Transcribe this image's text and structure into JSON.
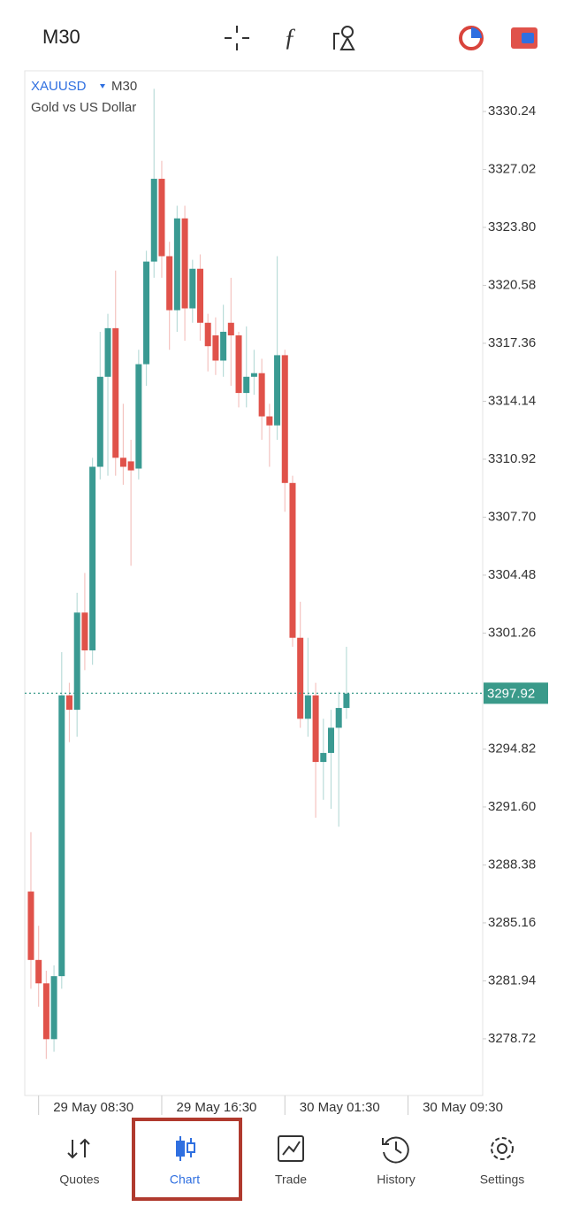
{
  "toolbar": {
    "timeframe": "M30"
  },
  "chart_data": {
    "type": "candlestick",
    "symbol": "XAUUSD",
    "timeframe": "M30",
    "subtitle": "Gold vs US Dollar",
    "up_color": "#3a9a92",
    "down_color": "#e0524a",
    "categories": [
      null,
      null,
      null,
      null,
      null,
      null,
      null,
      null,
      null,
      null,
      null,
      null,
      null,
      null,
      null,
      null,
      null,
      null,
      null,
      null,
      null,
      null,
      null,
      null,
      null,
      null,
      null,
      null,
      null,
      null,
      null,
      null,
      null,
      null,
      null,
      null,
      null,
      null,
      null,
      null,
      null,
      null
    ],
    "open": [
      3286.9,
      3283.1,
      3281.8,
      3278.7,
      3282.2,
      3297.8,
      3297.0,
      3302.4,
      3300.3,
      3310.5,
      3315.5,
      3318.2,
      3311.0,
      3310.8,
      3310.4,
      3316.2,
      3321.9,
      3326.5,
      3322.2,
      3319.2,
      3324.3,
      3319.3,
      3321.5,
      3318.5,
      3317.8,
      3316.4,
      3318.5,
      3317.8,
      3314.6,
      3315.5,
      3315.7,
      3313.3,
      3312.8,
      3316.7,
      3309.6,
      3301.0,
      3296.5,
      3297.8,
      3294.1,
      3294.6,
      3296.0,
      3297.1
    ],
    "high": [
      3290.2,
      3285.0,
      3282.5,
      3282.8,
      3300.2,
      3298.5,
      3303.5,
      3304.6,
      3311.0,
      3318.0,
      3319.0,
      3321.4,
      3314.0,
      3312.0,
      3317.0,
      3322.5,
      3331.5,
      3327.5,
      3323.0,
      3325.0,
      3325.0,
      3322.0,
      3322.3,
      3319.0,
      3318.8,
      3319.5,
      3321.0,
      3318.0,
      3318.3,
      3317.0,
      3316.5,
      3314.0,
      3322.2,
      3317.0,
      3310.0,
      3303.0,
      3301.0,
      3298.5,
      3296.5,
      3297.0,
      3298.0,
      3300.5
    ],
    "low": [
      3281.5,
      3280.5,
      3277.6,
      3278.0,
      3281.5,
      3295.2,
      3295.5,
      3299.2,
      3299.5,
      3309.8,
      3310.0,
      3310.0,
      3309.5,
      3305.0,
      3309.8,
      3315.0,
      3321.0,
      3321.0,
      3317.0,
      3318.0,
      3317.5,
      3318.5,
      3317.5,
      3315.8,
      3315.6,
      3315.5,
      3315.0,
      3313.8,
      3313.8,
      3314.5,
      3312.0,
      3310.5,
      3312.0,
      3308.0,
      3300.5,
      3296.0,
      3295.5,
      3291.0,
      3292.0,
      3291.5,
      3290.5,
      3296.5
    ],
    "close": [
      3283.1,
      3281.8,
      3278.7,
      3282.2,
      3297.8,
      3297.0,
      3302.4,
      3300.3,
      3310.5,
      3315.5,
      3318.2,
      3311.0,
      3310.5,
      3310.3,
      3316.2,
      3321.9,
      3326.5,
      3322.2,
      3319.2,
      3324.3,
      3319.3,
      3321.5,
      3318.5,
      3317.2,
      3316.4,
      3318.0,
      3317.8,
      3314.6,
      3315.5,
      3315.7,
      3313.3,
      3312.8,
      3316.7,
      3309.6,
      3301.0,
      3296.5,
      3297.8,
      3294.1,
      3294.6,
      3296.0,
      3297.1,
      3297.9
    ],
    "last_price": 3297.92,
    "last_price_color": "#3a9a8a",
    "ylim": [
      3275.57,
      3332.5
    ],
    "yticks": [
      3330.24,
      3327.02,
      {
        "value": 3323.8,
        "label": "3323.80"
      },
      3320.58,
      3317.36,
      3314.14,
      3310.92,
      {
        "value": 3307.7,
        "label": "3307.70"
      },
      3304.48,
      3301.26,
      3294.82,
      {
        "value": 3291.6,
        "label": "3291.60"
      },
      3288.38,
      3285.16,
      3281.94,
      3278.72
    ],
    "xlim": [
      -0.8,
      58.7
    ],
    "xticks": [
      {
        "value": 1,
        "label": "29 May 08:30"
      },
      {
        "value": 17,
        "label": "29 May 16:30"
      },
      {
        "value": 33,
        "label": "30 May 01:30"
      },
      {
        "value": 49,
        "label": "30 May 09:30"
      }
    ]
  },
  "nav": {
    "items": [
      "Quotes",
      "Chart",
      "Trade",
      "History",
      "Settings"
    ],
    "active": 1
  }
}
